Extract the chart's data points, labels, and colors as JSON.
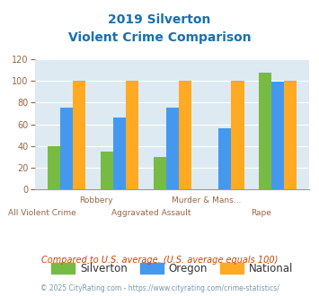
{
  "title_line1": "2019 Silverton",
  "title_line2": "Violent Crime Comparison",
  "title_color": "#1a6faf",
  "groups": [
    {
      "silverton": 40,
      "oregon": 75,
      "national": 100
    },
    {
      "silverton": 35,
      "oregon": 66,
      "national": 100
    },
    {
      "silverton": 30,
      "oregon": 75,
      "national": 100
    },
    {
      "silverton": 0,
      "oregon": 56,
      "national": 100
    },
    {
      "silverton": 108,
      "oregon": 99,
      "national": 100
    }
  ],
  "xtick_row1": [
    "",
    "Robbery",
    "",
    "Murder & Mans...",
    ""
  ],
  "xtick_row2": [
    "All Violent Crime",
    "",
    "Aggravated Assault",
    "",
    "Rape"
  ],
  "silverton_color": "#77bb44",
  "oregon_color": "#4499ee",
  "national_color": "#ffaa22",
  "bg_color": "#ddeaf2",
  "ylim": [
    0,
    120
  ],
  "yticks": [
    0,
    20,
    40,
    60,
    80,
    100,
    120
  ],
  "legend_labels": [
    "Silverton",
    "Oregon",
    "National"
  ],
  "footnote1": "Compared to U.S. average. (U.S. average equals 100)",
  "footnote2": "© 2025 CityRating.com - https://www.cityrating.com/crime-statistics/",
  "footnote1_color": "#cc4400",
  "footnote2_color": "#7799aa"
}
